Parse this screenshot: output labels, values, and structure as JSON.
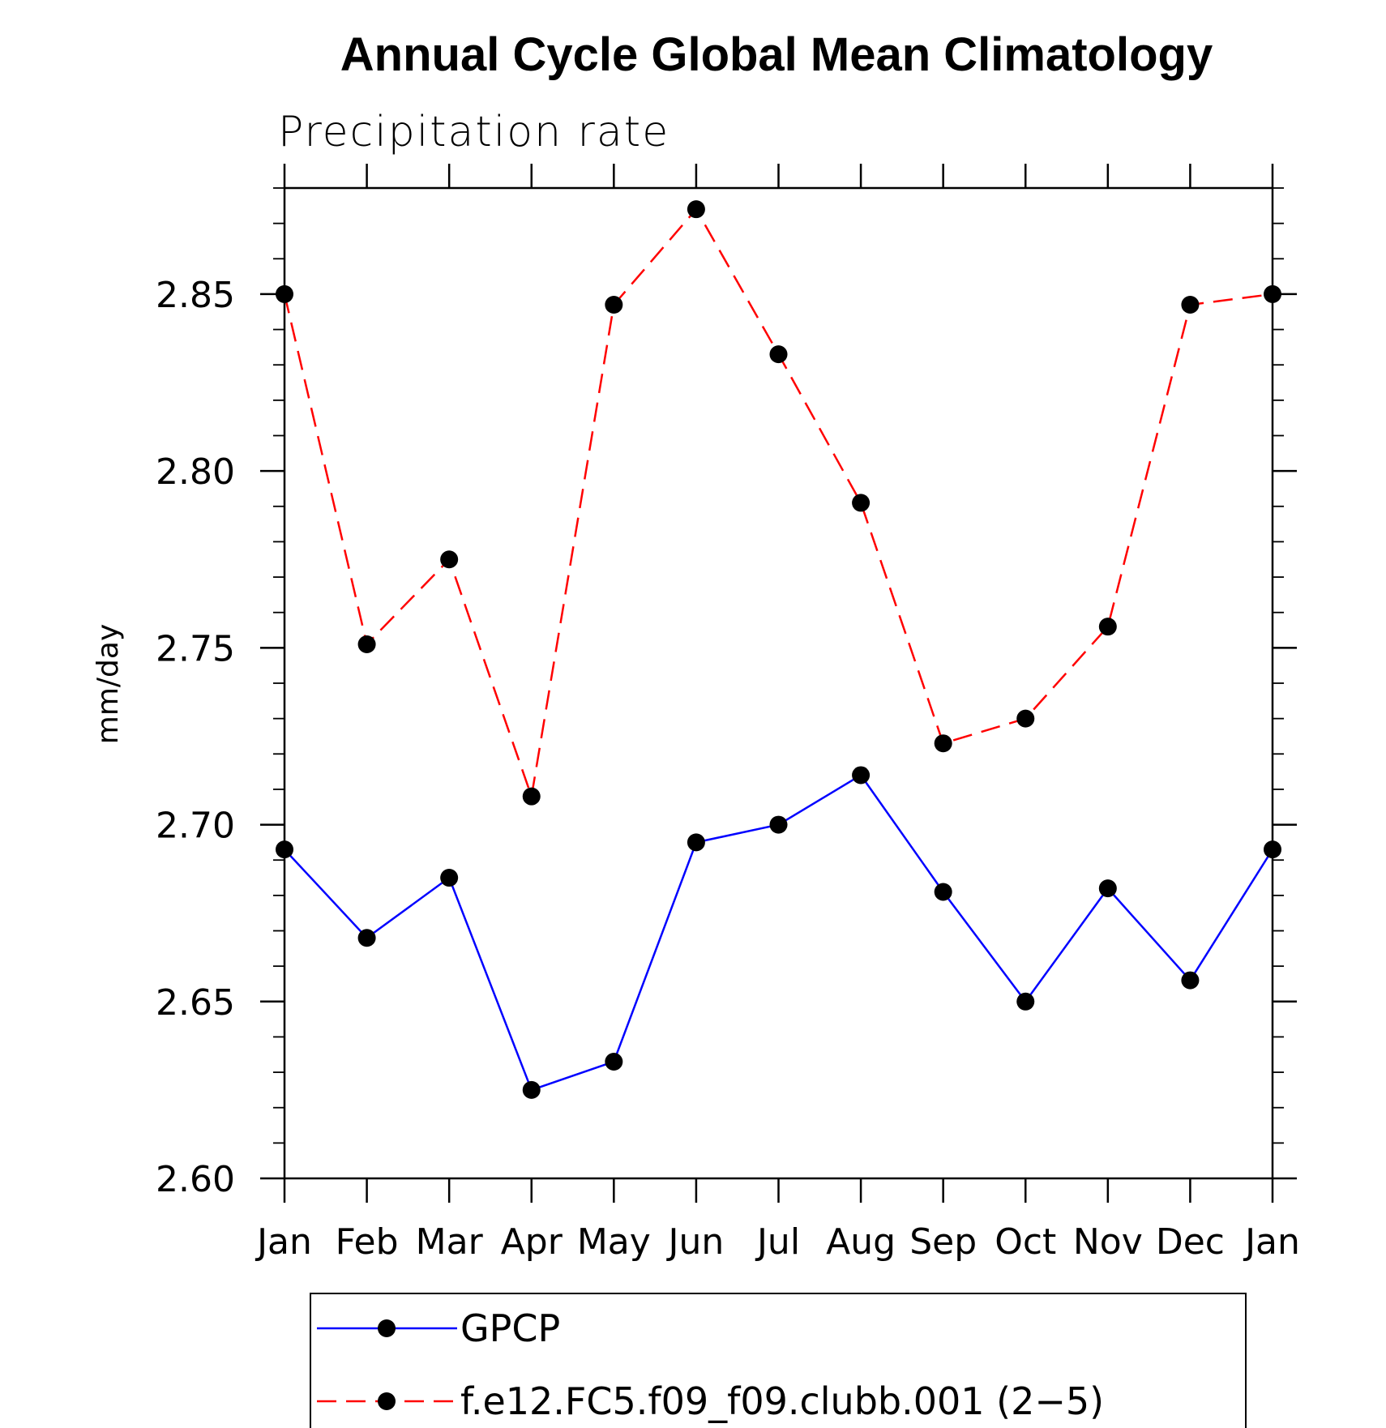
{
  "chart_data": {
    "type": "line",
    "title": "Annual Cycle Global Mean Climatology",
    "subtitle": "Precipitation rate",
    "xlabel": "",
    "ylabel": "mm/day",
    "categories": [
      "Jan",
      "Feb",
      "Mar",
      "Apr",
      "May",
      "Jun",
      "Jul",
      "Aug",
      "Sep",
      "Oct",
      "Nov",
      "Dec",
      "Jan"
    ],
    "ylim": [
      2.6,
      2.88
    ],
    "yticks": [
      2.6,
      2.65,
      2.7,
      2.75,
      2.8,
      2.85
    ],
    "ytick_labels": [
      "2.60",
      "2.65",
      "2.70",
      "2.75",
      "2.80",
      "2.85"
    ],
    "yminor_step": 0.01,
    "grid": false,
    "legend_position": "bottom",
    "series": [
      {
        "name": "GPCP",
        "color": "#0000ff",
        "dash": "solid",
        "marker": "filled-circle",
        "values": [
          2.693,
          2.668,
          2.685,
          2.625,
          2.633,
          2.695,
          2.7,
          2.714,
          2.681,
          2.65,
          2.682,
          2.656,
          2.693
        ]
      },
      {
        "name": "f.e12.FC5.f09_f09.clubb.001 (2−5)",
        "color": "#ff0000",
        "dash": "dashed",
        "marker": "filled-circle",
        "values": [
          2.85,
          2.751,
          2.775,
          2.708,
          2.847,
          2.874,
          2.833,
          2.791,
          2.723,
          2.73,
          2.756,
          2.847,
          2.85
        ]
      }
    ]
  }
}
